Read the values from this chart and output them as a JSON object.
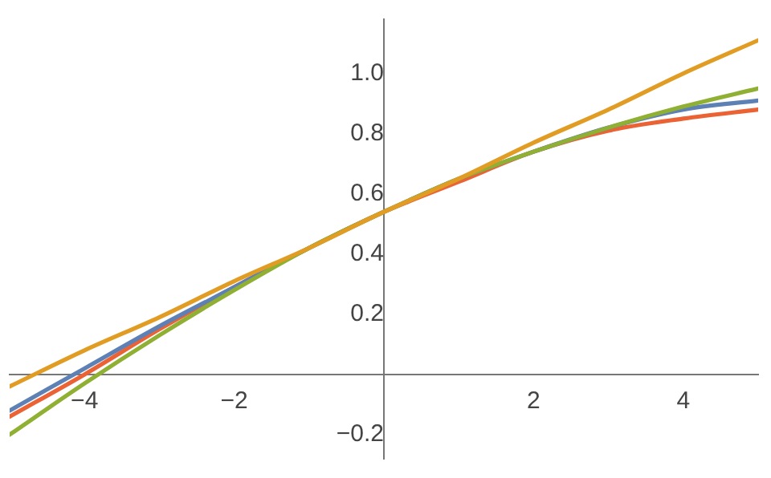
{
  "chart_data": {
    "type": "line",
    "x": [
      -5,
      -4,
      -3,
      -2,
      -1,
      0,
      1,
      2,
      3,
      4,
      5
    ],
    "series": [
      {
        "color": "#e19c24",
        "values": [
          -0.04,
          0.08,
          0.19,
          0.31,
          0.42,
          0.54,
          0.65,
          0.77,
          0.88,
          1.0,
          1.11
        ]
      },
      {
        "color": "#8fb032",
        "values": [
          -0.2,
          -0.03,
          0.13,
          0.28,
          0.42,
          0.54,
          0.65,
          0.74,
          0.82,
          0.89,
          0.95
        ]
      },
      {
        "color": "#5e81b5",
        "values": [
          -0.12,
          0.02,
          0.16,
          0.29,
          0.42,
          0.54,
          0.65,
          0.74,
          0.82,
          0.88,
          0.91
        ]
      },
      {
        "color": "#eb6235",
        "values": [
          -0.14,
          0.0,
          0.15,
          0.29,
          0.42,
          0.54,
          0.64,
          0.74,
          0.81,
          0.85,
          0.88
        ]
      }
    ],
    "xlim": [
      -5,
      5
    ],
    "xticks": [
      -4,
      -2,
      2,
      4
    ],
    "ylim": [
      -0.28,
      1.18
    ],
    "yticks": [
      -0.2,
      0.2,
      0.4,
      0.6,
      0.8,
      {
        "value": 1,
        "label": "1.0"
      }
    ],
    "grid": false,
    "legend": false,
    "marker": "none",
    "line_style": "solid"
  }
}
